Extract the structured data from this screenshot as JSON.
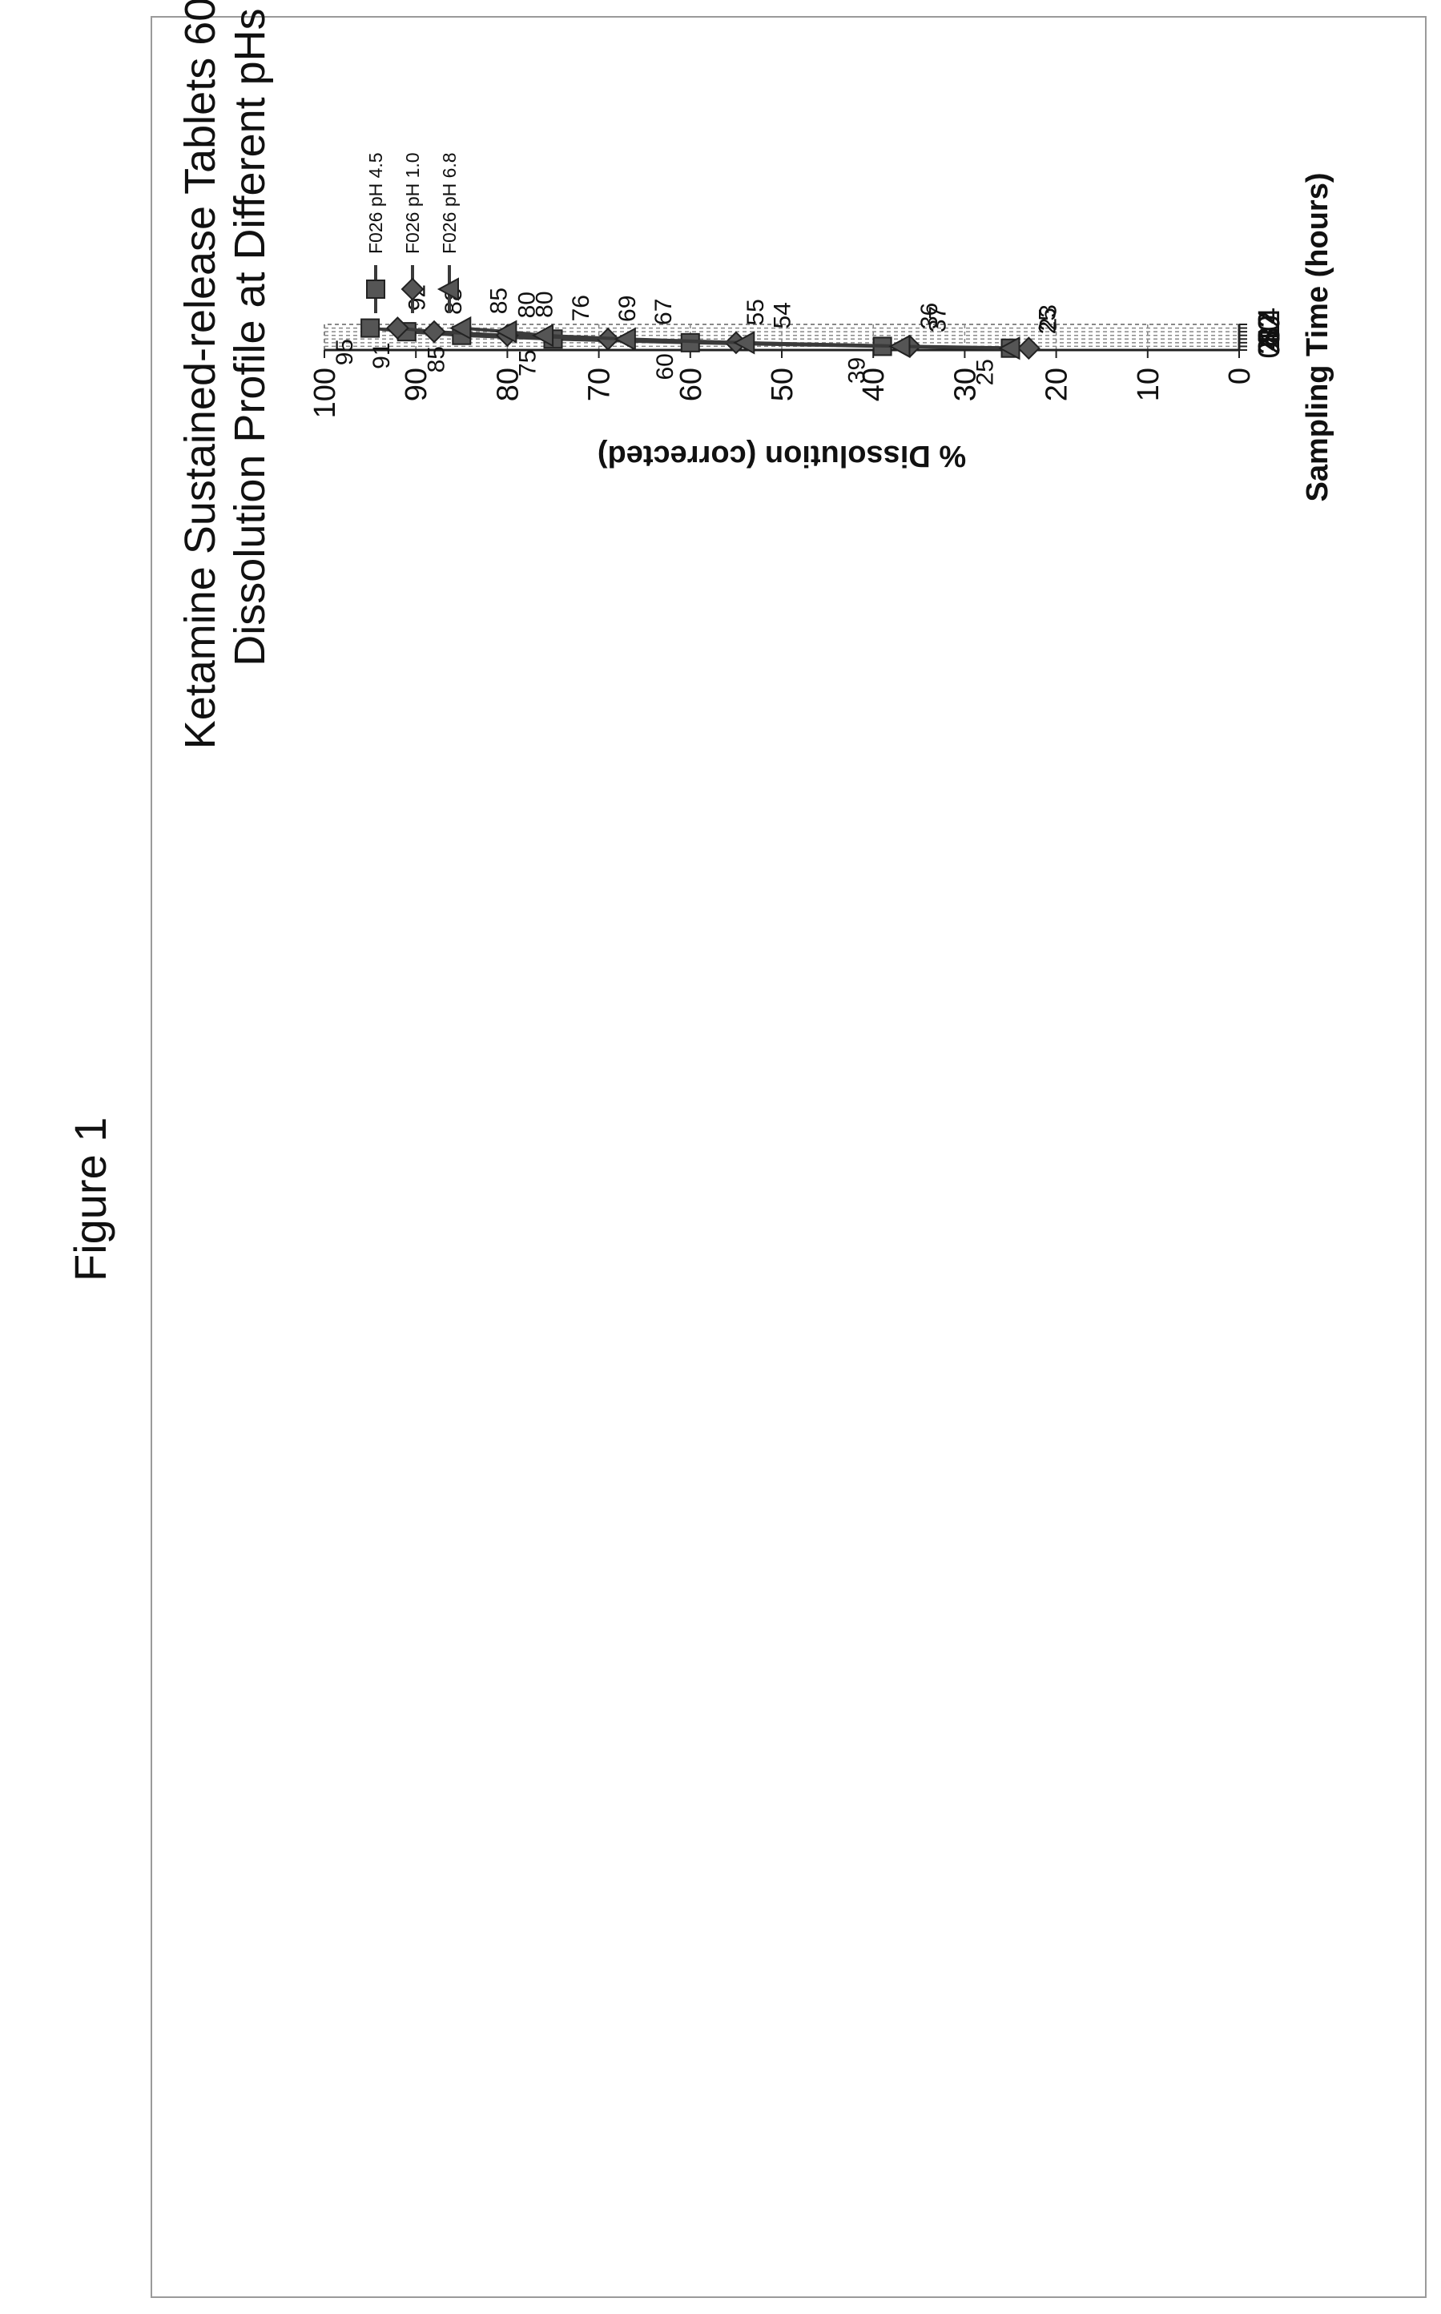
{
  "page": {
    "figure_label": "Figure 1"
  },
  "chart_data": {
    "type": "line",
    "title": [
      "Ketamine Sustained-release Tablets 60 mg",
      "Dissolution Profile at Different pHs"
    ],
    "xlabel": "Sampling Time (hours)",
    "ylabel": "% Dissolution (corrected)",
    "xlim": [
      0,
      14
    ],
    "ylim": [
      0,
      100
    ],
    "x_ticks": [
      "0",
      "2",
      "4",
      "6",
      "8",
      "10",
      "12",
      "14"
    ],
    "y_ticks": [
      "0",
      "10",
      "20",
      "30",
      "40",
      "50",
      "60",
      "70",
      "80",
      "90",
      "100"
    ],
    "grid": true,
    "orientation": "rotated 90 degrees counter-clockwise",
    "legend_position": "top-right",
    "x": [
      1,
      2,
      4,
      6,
      8,
      10,
      12
    ],
    "series": [
      {
        "name": "F026 pH 4.5",
        "marker": "square",
        "values": [
          25,
          39,
          60,
          75,
          85,
          91,
          95
        ],
        "labels": [
          "25",
          "39",
          "60",
          "75",
          "85",
          "91",
          "95"
        ]
      },
      {
        "name": "F026 pH 1.0",
        "marker": "diamond",
        "values": [
          23,
          36,
          55,
          69,
          80,
          88,
          92
        ],
        "labels": [
          "23",
          "36",
          "55",
          "69",
          "80",
          "88",
          "92"
        ]
      },
      {
        "name": "F026 pH 6.8",
        "marker": "triangle",
        "values": [
          25,
          37,
          54,
          67,
          76,
          80,
          85
        ],
        "labels": [
          "25",
          "37",
          "54",
          "67",
          "76",
          "80",
          "85"
        ]
      }
    ],
    "colors": {
      "line": "#3a3a3a",
      "grid": "#888888",
      "frame": "#9a9a9a"
    }
  }
}
